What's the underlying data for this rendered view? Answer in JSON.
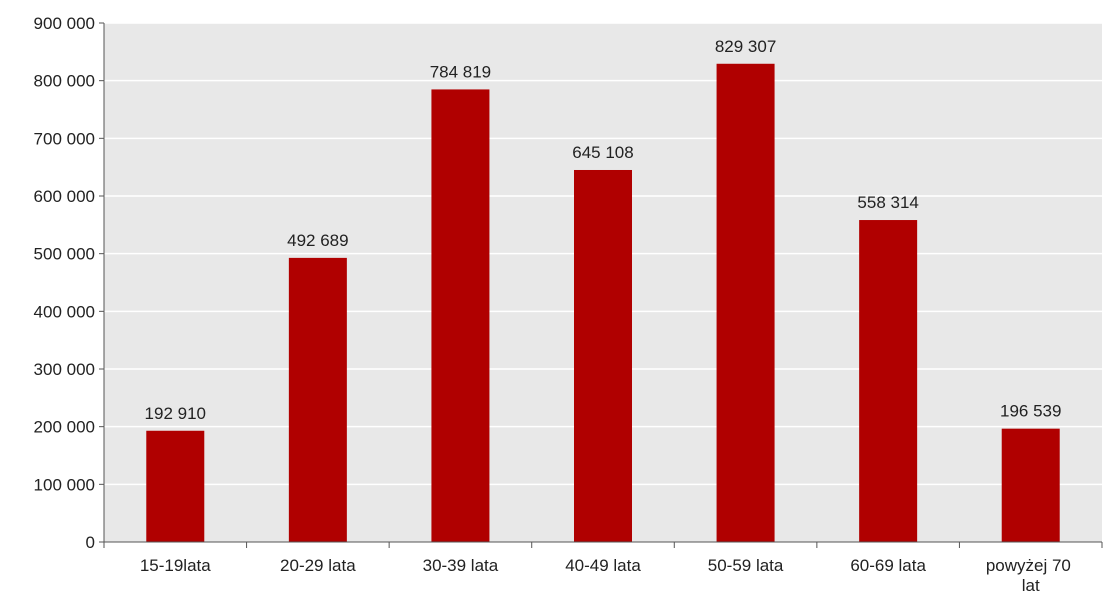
{
  "chart_data": {
    "type": "bar",
    "categories": [
      "15-19lata",
      "20-29 lata",
      "30-39 lata",
      "40-49 lata",
      "50-59 lata",
      "60-69 lata",
      "powyżej 70 lat"
    ],
    "values": [
      192910,
      492689,
      784819,
      645108,
      829307,
      558314,
      196539
    ],
    "data_labels": [
      "192 910",
      "492 689",
      "784 819",
      "645 108",
      "829 307",
      "558 314",
      "196 539"
    ],
    "y_ticks": [
      0,
      100000,
      200000,
      300000,
      400000,
      500000,
      600000,
      700000,
      800000,
      900000
    ],
    "y_tick_labels": [
      "0",
      "100 000",
      "200 000",
      "300 000",
      "400 000",
      "500 000",
      "600 000",
      "700 000",
      "800 000",
      "900 000"
    ],
    "ylim": [
      0,
      900000
    ],
    "grid": true,
    "legend": "none",
    "colors": {
      "bar": "#b00000",
      "plot_background": "#e8e8e8",
      "gridline": "#ffffff",
      "axis": "#555555"
    }
  }
}
